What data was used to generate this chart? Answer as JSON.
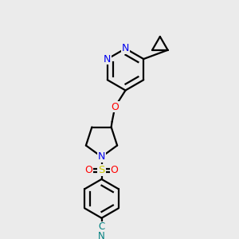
{
  "background_color": "#ebebeb",
  "atom_colors": {
    "N": "#0000ee",
    "O": "#ff0000",
    "S": "#cccc00",
    "C_cyan": "#008080"
  },
  "figsize": [
    3.0,
    3.0
  ],
  "dpi": 100,
  "lw": 1.6
}
